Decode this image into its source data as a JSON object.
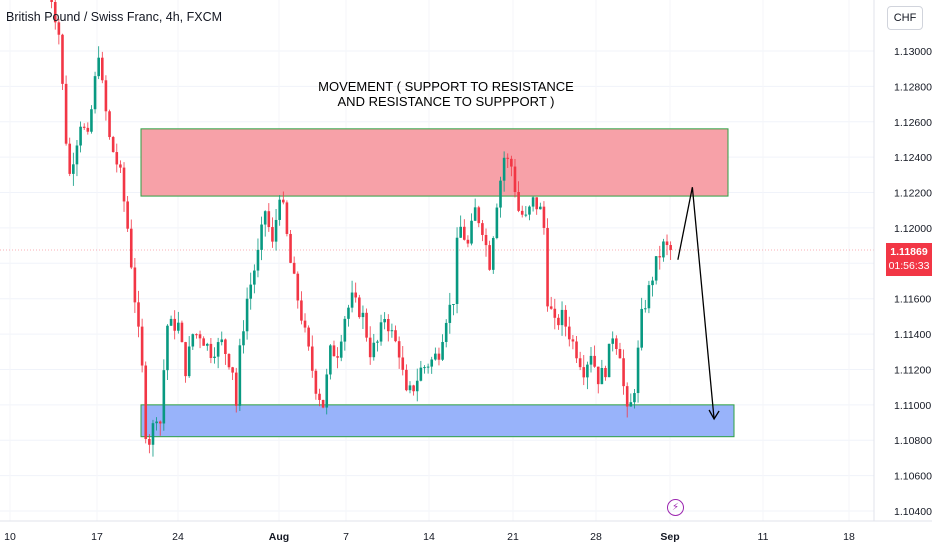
{
  "header": {
    "symbol_title": "British Pound / Swiss Franc, 4h, FXCM"
  },
  "currency_button": "CHF",
  "annotation": {
    "line1": "MOVEMENT ( SUPPORT TO RESISTANCE",
    "line2": "AND RESISTANCE TO SUPPPORT )"
  },
  "last_price": {
    "price": "1.11869",
    "countdown": "01:56:33"
  },
  "colors": {
    "up": "#089981",
    "down": "#f23645",
    "resistance_fill": "#f7a1a8",
    "support_fill": "#98b3fa",
    "zone_border": "#2ea043"
  },
  "icons": {
    "event": "lightning-bolt-icon"
  },
  "chart_data": {
    "type": "candlestick",
    "title": "British Pound / Swiss Franc, 4h, FXCM",
    "y_axis": {
      "ticks": [
        "1.13000",
        "1.12800",
        "1.12600",
        "1.12400",
        "1.12200",
        "1.12000",
        "1.11800",
        "1.11600",
        "1.11400",
        "1.11200",
        "1.11000",
        "1.10800",
        "1.10600",
        "1.10400"
      ],
      "range": [
        1.1035,
        1.1325
      ]
    },
    "x_axis": {
      "ticks": [
        "10",
        "17",
        "24",
        "Aug",
        "7",
        "14",
        "21",
        "28",
        "Sep",
        "11",
        "18"
      ]
    },
    "zones": [
      {
        "label": "resistance",
        "from": 1.1218,
        "to": 1.1256
      },
      {
        "label": "support",
        "from": 1.1082,
        "to": 1.11
      }
    ],
    "anchors": [
      [
        0,
        1.134
      ],
      [
        3,
        1.131
      ],
      [
        4,
        1.128
      ],
      [
        5,
        1.125
      ],
      [
        6,
        1.123
      ],
      [
        9,
        1.126
      ],
      [
        11,
        1.125
      ],
      [
        14,
        1.13
      ],
      [
        15,
        1.128
      ],
      [
        17,
        1.125
      ],
      [
        20,
        1.123
      ],
      [
        22,
        1.12
      ],
      [
        24,
        1.116
      ],
      [
        26,
        1.112
      ],
      [
        27,
        1.1085
      ],
      [
        28,
        1.108
      ],
      [
        30,
        1.1095
      ],
      [
        31,
        1.109
      ],
      [
        32,
        1.112
      ],
      [
        33,
        1.1145
      ],
      [
        36,
        1.1145
      ],
      [
        38,
        1.112
      ],
      [
        40,
        1.114
      ],
      [
        42,
        1.114
      ],
      [
        45,
        1.113
      ],
      [
        48,
        1.1135
      ],
      [
        51,
        1.112
      ],
      [
        52,
        1.11
      ],
      [
        53,
        1.113
      ],
      [
        55,
        1.116
      ],
      [
        58,
        1.1185
      ],
      [
        60,
        1.121
      ],
      [
        62,
        1.119
      ],
      [
        64,
        1.122
      ],
      [
        65,
        1.121
      ],
      [
        67,
        1.118
      ],
      [
        69,
        1.116
      ],
      [
        71,
        1.114
      ],
      [
        74,
        1.111
      ],
      [
        76,
        1.11
      ],
      [
        78,
        1.113
      ],
      [
        80,
        1.113
      ],
      [
        82,
        1.115
      ],
      [
        84,
        1.116
      ],
      [
        87,
        1.115
      ],
      [
        89,
        1.113
      ],
      [
        91,
        1.1135
      ],
      [
        93,
        1.115
      ],
      [
        95,
        1.114
      ],
      [
        97,
        1.113
      ],
      [
        99,
        1.1105
      ],
      [
        101,
        1.111
      ],
      [
        103,
        1.112
      ],
      [
        106,
        1.1125
      ],
      [
        108,
        1.113
      ],
      [
        110,
        1.115
      ],
      [
        112,
        1.116
      ],
      [
        113,
        1.119
      ],
      [
        114,
        1.12
      ],
      [
        116,
        1.119
      ],
      [
        118,
        1.121
      ],
      [
        120,
        1.12
      ],
      [
        122,
        1.118
      ],
      [
        124,
        1.1215
      ],
      [
        126,
        1.124
      ],
      [
        128,
        1.1235
      ],
      [
        130,
        1.121
      ],
      [
        132,
        1.1205
      ],
      [
        134,
        1.1215
      ],
      [
        136,
        1.121
      ],
      [
        137,
        1.12
      ],
      [
        138,
        1.116
      ],
      [
        140,
        1.1145
      ],
      [
        142,
        1.115
      ],
      [
        144,
        1.114
      ],
      [
        146,
        1.113
      ],
      [
        148,
        1.112
      ],
      [
        150,
        1.113
      ],
      [
        152,
        1.1115
      ],
      [
        154,
        1.112
      ],
      [
        156,
        1.114
      ],
      [
        158,
        1.113
      ],
      [
        159,
        1.111
      ],
      [
        160,
        1.1095
      ],
      [
        161,
        1.11
      ],
      [
        162,
        1.111
      ],
      [
        163,
        1.113
      ],
      [
        164,
        1.115
      ],
      [
        166,
        1.1165
      ],
      [
        168,
        1.118
      ],
      [
        170,
        1.119
      ],
      [
        172,
        1.1187
      ]
    ],
    "annotation_arrow": {
      "from": [
        174,
        1.1182
      ],
      "peak": [
        178,
        1.1223
      ],
      "to": [
        184,
        1.1092
      ]
    }
  }
}
